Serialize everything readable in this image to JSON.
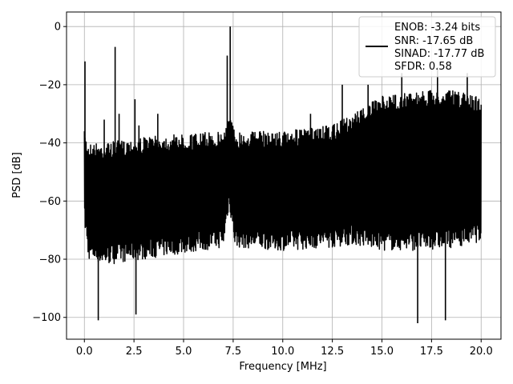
{
  "chart_data": {
    "type": "line",
    "title": "",
    "xlabel": "Frequency [MHz]",
    "ylabel": "PSD [dB]",
    "xlim": [
      -0.9,
      21.0
    ],
    "ylim": [
      -107.5,
      5.0
    ],
    "grid": true,
    "legend_position": "top-right",
    "colors": {
      "line": "#000000",
      "grid": "#b0b0b0",
      "axes": "#000000"
    },
    "x_ticks": [
      {
        "value": 0.0,
        "label": "0.0"
      },
      {
        "value": 2.5,
        "label": "2.5"
      },
      {
        "value": 5.0,
        "label": "5.0"
      },
      {
        "value": 7.5,
        "label": "7.5"
      },
      {
        "value": 10.0,
        "label": "10.0"
      },
      {
        "value": 12.5,
        "label": "12.5"
      },
      {
        "value": 15.0,
        "label": "15.0"
      },
      {
        "value": 17.5,
        "label": "17.5"
      },
      {
        "value": 20.0,
        "label": "20.0"
      }
    ],
    "y_ticks": [
      {
        "value": 0,
        "label": "0"
      },
      {
        "value": -20,
        "label": "−20"
      },
      {
        "value": -40,
        "label": "−40"
      },
      {
        "value": -60,
        "label": "−60"
      },
      {
        "value": -80,
        "label": "−80"
      },
      {
        "value": -100,
        "label": "−100"
      }
    ],
    "legend_lines": [
      "ENOB: -3.24 bits",
      "SNR: -17.65 dB",
      "SINAD: -17.77 dB",
      "SFDR: 0.58"
    ],
    "series": [
      {
        "noise_band_x": [
          0.0,
          20.0
        ],
        "envelope": [
          {
            "x": 0.0,
            "upper": -36,
            "lower": -68
          },
          {
            "x": 0.2,
            "upper": -40,
            "lower": -80
          },
          {
            "x": 1.0,
            "upper": -40,
            "lower": -82
          },
          {
            "x": 3.0,
            "upper": -38,
            "lower": -80
          },
          {
            "x": 5.0,
            "upper": -37,
            "lower": -78
          },
          {
            "x": 7.0,
            "upper": -36,
            "lower": -76
          },
          {
            "x": 7.3,
            "upper": -30,
            "lower": -62
          },
          {
            "x": 7.6,
            "upper": -36,
            "lower": -76
          },
          {
            "x": 10.0,
            "upper": -36,
            "lower": -77
          },
          {
            "x": 12.5,
            "upper": -34,
            "lower": -76
          },
          {
            "x": 13.5,
            "upper": -30,
            "lower": -75
          },
          {
            "x": 15.0,
            "upper": -24,
            "lower": -77
          },
          {
            "x": 17.0,
            "upper": -22,
            "lower": -77
          },
          {
            "x": 18.5,
            "upper": -22,
            "lower": -76
          },
          {
            "x": 20.0,
            "upper": -24,
            "lower": -74
          }
        ],
        "spikes": [
          {
            "x": 0.03,
            "y": -12
          },
          {
            "x": 0.7,
            "y": -101
          },
          {
            "x": 1.0,
            "y": -32
          },
          {
            "x": 1.55,
            "y": -7
          },
          {
            "x": 1.75,
            "y": -30
          },
          {
            "x": 2.55,
            "y": -25
          },
          {
            "x": 2.6,
            "y": -99
          },
          {
            "x": 2.75,
            "y": -34
          },
          {
            "x": 3.7,
            "y": -30
          },
          {
            "x": 7.2,
            "y": -10
          },
          {
            "x": 7.35,
            "y": 0
          },
          {
            "x": 11.4,
            "y": -30
          },
          {
            "x": 13.0,
            "y": -20
          },
          {
            "x": 14.3,
            "y": -20
          },
          {
            "x": 16.0,
            "y": -16
          },
          {
            "x": 16.8,
            "y": -102
          },
          {
            "x": 17.8,
            "y": -14
          },
          {
            "x": 18.2,
            "y": -101
          },
          {
            "x": 19.3,
            "y": -16
          }
        ]
      }
    ]
  }
}
